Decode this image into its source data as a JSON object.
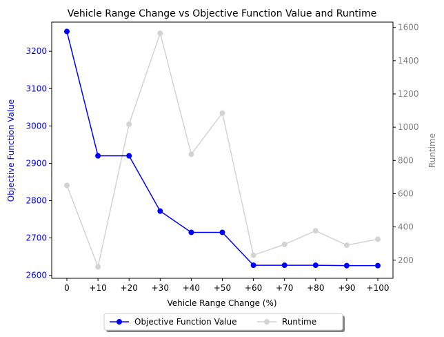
{
  "chart_data": {
    "type": "line",
    "title": "Vehicle Range Change vs Objective Function Value and Runtime",
    "xlabel": "Vehicle Range Change (%)",
    "ylabel_left": "Objective Function Value",
    "ylabel_right": "Runtime",
    "categories": [
      "0",
      "+10",
      "+20",
      "+30",
      "+40",
      "+50",
      "+60",
      "+70",
      "+80",
      "+90",
      "+100"
    ],
    "left_axis": {
      "ylim": [
        2592,
        3278
      ],
      "ticks": [
        2600,
        2700,
        2800,
        2900,
        3000,
        3100,
        3200
      ],
      "tick_color": "#0000ff"
    },
    "right_axis": {
      "ylim": [
        91,
        1632
      ],
      "ticks": [
        200,
        400,
        600,
        800,
        1000,
        1200,
        1400,
        1600
      ],
      "tick_color": "#808080"
    },
    "series": [
      {
        "name": "Objective Function Value",
        "axis": "left",
        "color": "#0000ff",
        "values": [
          3253,
          2920,
          2920,
          2772,
          2715,
          2715,
          2627,
          2627,
          2627,
          2626,
          2626
        ]
      },
      {
        "name": "Runtime",
        "axis": "right",
        "color": "#d3d3d3",
        "values": [
          650,
          160,
          1018,
          1565,
          837,
          1085,
          230,
          295,
          377,
          290,
          326
        ]
      }
    ],
    "legend": "bottom-center",
    "grid": false
  }
}
